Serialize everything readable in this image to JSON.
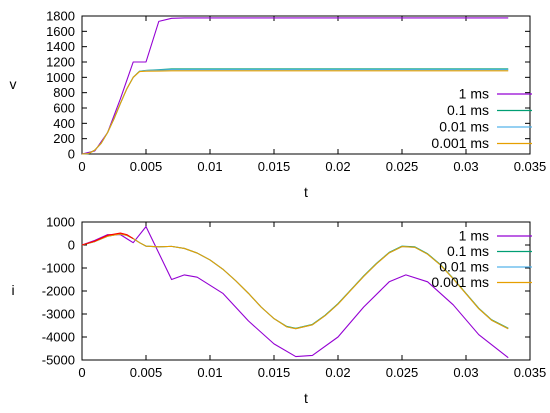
{
  "chart_data": [
    {
      "type": "line",
      "xlabel": "t",
      "ylabel": "v",
      "xlim": [
        0,
        0.035
      ],
      "ylim": [
        0,
        1800
      ],
      "xticks": [
        0,
        0.005,
        0.01,
        0.015,
        0.02,
        0.025,
        0.03,
        0.035
      ],
      "xtick_labels": [
        "0",
        "0.005",
        "0.01",
        "0.015",
        "0.02",
        "0.025",
        "0.03",
        "0.035"
      ],
      "yticks": [
        0,
        200,
        400,
        600,
        800,
        1000,
        1200,
        1400,
        1600,
        1800
      ],
      "ytick_labels": [
        "0",
        "200",
        "400",
        "600",
        "800",
        "1000",
        "1200",
        "1400",
        "1600",
        "1800"
      ],
      "grid": false,
      "legend_position": "bottom-right",
      "series": [
        {
          "name": "1 ms",
          "color": "#9400d3",
          "x": [
            0,
            0.001,
            0.002,
            0.003,
            0.004,
            0.005,
            0.006,
            0.007,
            0.008,
            0.01,
            0.0333
          ],
          "y": [
            0,
            40,
            280,
            720,
            1200,
            1200,
            1730,
            1770,
            1775,
            1775,
            1775
          ]
        },
        {
          "name": "0.1 ms",
          "color": "#009e73",
          "x": [
            0,
            0.0005,
            0.001,
            0.0015,
            0.002,
            0.0025,
            0.003,
            0.0035,
            0.004,
            0.0045,
            0.005,
            0.006,
            0.007,
            0.01,
            0.0333
          ],
          "y": [
            0,
            5,
            50,
            140,
            280,
            460,
            660,
            850,
            1000,
            1080,
            1090,
            1100,
            1110,
            1110,
            1110
          ]
        },
        {
          "name": "0.01 ms",
          "color": "#56b4e9",
          "x": [
            0,
            0.0005,
            0.001,
            0.0015,
            0.002,
            0.0025,
            0.003,
            0.0035,
            0.004,
            0.0045,
            0.005,
            0.006,
            0.007,
            0.01,
            0.0333
          ],
          "y": [
            0,
            5,
            50,
            140,
            280,
            460,
            660,
            850,
            1000,
            1078,
            1088,
            1095,
            1100,
            1100,
            1100
          ]
        },
        {
          "name": "0.001 ms",
          "color": "#e69f00",
          "x": [
            0,
            0.0005,
            0.001,
            0.0015,
            0.002,
            0.0025,
            0.003,
            0.0035,
            0.004,
            0.0045,
            0.005,
            0.006,
            0.007,
            0.01,
            0.0333
          ],
          "y": [
            0,
            5,
            50,
            140,
            280,
            460,
            660,
            850,
            1000,
            1075,
            1080,
            1082,
            1085,
            1085,
            1085
          ]
        }
      ]
    },
    {
      "type": "line",
      "xlabel": "t",
      "ylabel": "i",
      "xlim": [
        0,
        0.035
      ],
      "ylim": [
        -5000,
        1000
      ],
      "xticks": [
        0,
        0.005,
        0.01,
        0.015,
        0.02,
        0.025,
        0.03,
        0.035
      ],
      "xtick_labels": [
        "0",
        "0.005",
        "0.01",
        "0.015",
        "0.02",
        "0.025",
        "0.03",
        "0.035"
      ],
      "yticks": [
        -5000,
        -4000,
        -3000,
        -2000,
        -1000,
        0,
        1000
      ],
      "ytick_labels": [
        "-5000",
        "-4000",
        "-3000",
        "-2000",
        "-1000",
        "0",
        "1000"
      ],
      "grid": false,
      "legend_position": "top-right",
      "series": [
        {
          "name": "1 ms",
          "color": "#9400d3",
          "x": [
            0,
            0.001,
            0.002,
            0.003,
            0.004,
            0.005,
            0.007,
            0.008,
            0.009,
            0.011,
            0.013,
            0.015,
            0.0167,
            0.018,
            0.02,
            0.022,
            0.024,
            0.0253,
            0.027,
            0.029,
            0.031,
            0.0333
          ],
          "y": [
            0,
            200,
            450,
            450,
            100,
            800,
            -1500,
            -1300,
            -1400,
            -2100,
            -3300,
            -4300,
            -4850,
            -4800,
            -4000,
            -2700,
            -1600,
            -1300,
            -1600,
            -2600,
            -3900,
            -4900
          ]
        },
        {
          "name": "0.1 ms",
          "color": "#009e73",
          "x": [
            0,
            0.001,
            0.002,
            0.003,
            0.0035,
            0.004,
            0.0045,
            0.005,
            0.006,
            0.007,
            0.008,
            0.009,
            0.01,
            0.011,
            0.012,
            0.013,
            0.014,
            0.015,
            0.016,
            0.0167,
            0.018,
            0.019,
            0.02,
            0.021,
            0.022,
            0.023,
            0.024,
            0.025,
            0.026,
            0.027,
            0.028,
            0.029,
            0.03,
            0.031,
            0.032,
            0.0333
          ],
          "y": [
            0,
            150,
            380,
            480,
            420,
            280,
            100,
            -50,
            -80,
            -60,
            -150,
            -350,
            -650,
            -1050,
            -1550,
            -2100,
            -2700,
            -3200,
            -3540,
            -3620,
            -3450,
            -3050,
            -2550,
            -1950,
            -1350,
            -800,
            -320,
            -50,
            -80,
            -380,
            -850,
            -1450,
            -2100,
            -2750,
            -3250,
            -3620
          ]
        },
        {
          "name": "0.01 ms",
          "color": "#56b4e9",
          "x": [
            0,
            0.001,
            0.002,
            0.003,
            0.0035,
            0.004,
            0.0045,
            0.005,
            0.006,
            0.007,
            0.008,
            0.009,
            0.01,
            0.011,
            0.012,
            0.013,
            0.014,
            0.015,
            0.016,
            0.0167,
            0.018,
            0.019,
            0.02,
            0.021,
            0.022,
            0.023,
            0.024,
            0.025,
            0.026,
            0.027,
            0.028,
            0.029,
            0.03,
            0.031,
            0.032,
            0.0333
          ],
          "y": [
            0,
            150,
            380,
            480,
            420,
            280,
            100,
            -50,
            -80,
            -60,
            -150,
            -350,
            -650,
            -1050,
            -1550,
            -2100,
            -2700,
            -3200,
            -3560,
            -3640,
            -3470,
            -3070,
            -2570,
            -1970,
            -1370,
            -820,
            -340,
            -70,
            -100,
            -400,
            -870,
            -1470,
            -2120,
            -2770,
            -3270,
            -3640
          ]
        },
        {
          "name": "0.001 ms",
          "color": "#e69f00",
          "x": [
            0,
            0.001,
            0.002,
            0.003,
            0.0035,
            0.004,
            0.0045,
            0.005,
            0.006,
            0.007,
            0.008,
            0.009,
            0.01,
            0.011,
            0.012,
            0.013,
            0.014,
            0.015,
            0.016,
            0.0167,
            0.018,
            0.019,
            0.02,
            0.021,
            0.022,
            0.023,
            0.024,
            0.025,
            0.026,
            0.027,
            0.028,
            0.029,
            0.03,
            0.031,
            0.032,
            0.0333
          ],
          "y": [
            0,
            150,
            380,
            480,
            420,
            280,
            100,
            -50,
            -80,
            -60,
            -150,
            -350,
            -650,
            -1050,
            -1550,
            -2100,
            -2700,
            -3200,
            -3560,
            -3640,
            -3470,
            -3070,
            -2570,
            -1970,
            -1370,
            -820,
            -340,
            -70,
            -100,
            -400,
            -870,
            -1470,
            -2120,
            -2770,
            -3270,
            -3640
          ]
        },
        {
          "name": "",
          "color": "#ff0000",
          "x": [
            0,
            0.001,
            0.002,
            0.003,
            0.0035,
            0.004
          ],
          "y": [
            0,
            170,
            420,
            520,
            450,
            280
          ]
        }
      ]
    }
  ]
}
